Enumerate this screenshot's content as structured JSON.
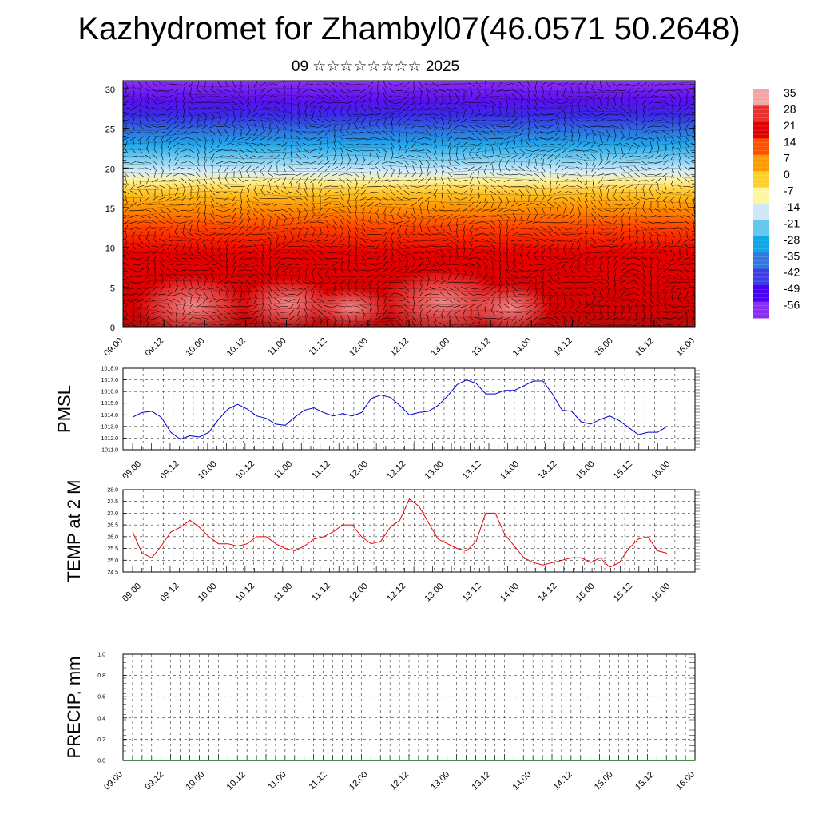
{
  "title": "Kazhydromet for Zhambyl07(46.0571 50.2648)",
  "subtitle": "09 ☆☆☆☆☆☆☆☆ 2025",
  "chart_data": [
    {
      "type": "heatmap",
      "name": "cross-section",
      "x_ticks": [
        "09.00",
        "09.12",
        "10.00",
        "10.12",
        "11.00",
        "11.12",
        "12.00",
        "12.12",
        "13.00",
        "13.12",
        "14.00",
        "14.12",
        "15.00",
        "15.12",
        "16.00"
      ],
      "y_ticks": [
        0,
        5,
        10,
        15,
        20,
        25,
        30
      ],
      "ylim": [
        0,
        31
      ],
      "colorbar_labels": [
        "35",
        "28",
        "21",
        "14",
        "7",
        "0",
        "-7",
        "-14",
        "-21",
        "-28",
        "-35",
        "-42",
        "-49",
        "-56"
      ],
      "colorbar_colors": [
        "#f2a6a6",
        "#e83030",
        "#e00000",
        "#ff5000",
        "#ff9a00",
        "#ffcf30",
        "#fff4a0",
        "#cfe8f5",
        "#66c8f0",
        "#10a6e8",
        "#2f78e0",
        "#3d3de8",
        "#4a00f0",
        "#8a2ef5"
      ]
    },
    {
      "type": "line",
      "ylabel": "PMSL",
      "ylim": [
        1011.0,
        1018.0
      ],
      "y_ticks": [
        "1011.0",
        "1012.0",
        "1013.0",
        "1014.0",
        "1015.0",
        "1016.0",
        "1017.0",
        "1018.0"
      ],
      "x_ticks": [
        "09.00",
        "09.12",
        "10.00",
        "10.12",
        "11.00",
        "11.12",
        "12.00",
        "12.12",
        "13.00",
        "13.12",
        "14.00",
        "14.12",
        "15.00",
        "15.12",
        "16.00"
      ],
      "color": "#0000cc",
      "values": [
        1013.8,
        1014.2,
        1014.3,
        1013.8,
        1012.5,
        1011.9,
        1012.2,
        1012.1,
        1012.5,
        1013.6,
        1014.5,
        1014.9,
        1014.5,
        1013.9,
        1013.7,
        1013.2,
        1013.1,
        1013.8,
        1014.4,
        1014.6,
        1014.2,
        1013.9,
        1014.1,
        1013.9,
        1014.2,
        1015.4,
        1015.7,
        1015.5,
        1014.8,
        1014.0,
        1014.2,
        1014.3,
        1014.8,
        1015.6,
        1016.6,
        1017.0,
        1016.7,
        1015.8,
        1015.8,
        1016.1,
        1016.1,
        1016.5,
        1016.9,
        1016.9,
        1015.8,
        1014.4,
        1014.3,
        1013.4,
        1013.2,
        1013.6,
        1013.9,
        1013.5,
        1012.9,
        1012.3,
        1012.5,
        1012.5,
        1013.0
      ]
    },
    {
      "type": "line",
      "ylabel": "TEMP at 2 M",
      "ylim": [
        24.5,
        28.0
      ],
      "y_ticks": [
        "24.5",
        "25.0",
        "25.5",
        "26.0",
        "26.5",
        "27.0",
        "27.5",
        "28.0"
      ],
      "x_ticks": [
        "09.00",
        "09.12",
        "10.00",
        "10.12",
        "11.00",
        "11.12",
        "12.00",
        "12.12",
        "13.00",
        "13.12",
        "14.00",
        "14.12",
        "15.00",
        "15.12",
        "16.00"
      ],
      "color": "#ee0000",
      "values": [
        26.2,
        25.3,
        25.1,
        25.6,
        26.2,
        26.4,
        26.7,
        26.4,
        26.0,
        25.7,
        25.7,
        25.6,
        25.7,
        26.0,
        26.0,
        25.7,
        25.5,
        25.4,
        25.6,
        25.9,
        26.0,
        26.2,
        26.5,
        26.5,
        26.0,
        25.7,
        25.8,
        26.4,
        26.7,
        27.6,
        27.3,
        26.6,
        25.9,
        25.7,
        25.5,
        25.4,
        25.8,
        27.0,
        27.0,
        26.1,
        25.6,
        25.1,
        24.9,
        24.8,
        24.9,
        25.0,
        25.1,
        25.1,
        24.9,
        25.1,
        24.7,
        24.9,
        25.5,
        25.9,
        26.0,
        25.4,
        25.3
      ]
    },
    {
      "type": "bar",
      "ylabel": "PRECIP, mm",
      "ylim": [
        0.0,
        1.0
      ],
      "y_ticks": [
        "0.0",
        "0.2",
        "0.4",
        "0.6",
        "0.8",
        "1.0"
      ],
      "x_ticks": [
        "09.00",
        "09.12",
        "10.00",
        "10.12",
        "11.00",
        "11.12",
        "12.00",
        "12.12",
        "13.00",
        "13.12",
        "14.00",
        "14.12",
        "15.00",
        "15.12",
        "16.00"
      ],
      "values": []
    }
  ]
}
